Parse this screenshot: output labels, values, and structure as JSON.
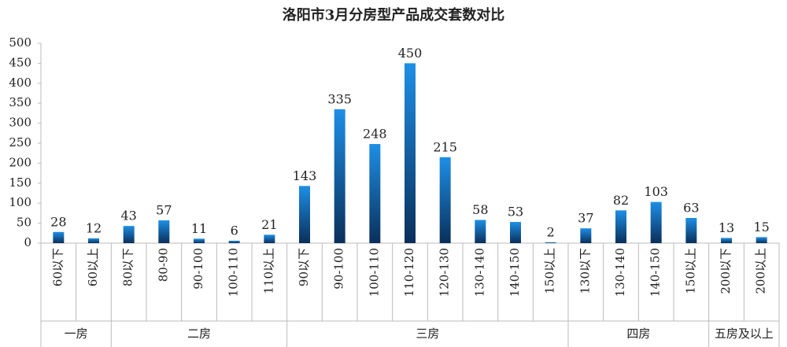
{
  "chart_data": {
    "type": "bar",
    "title": "洛阳市3月分房型产品成交套数对比",
    "color": "#1e8fe6",
    "ylim": [
      0,
      500
    ],
    "yticks": [
      0,
      50,
      100,
      150,
      200,
      250,
      300,
      350,
      400,
      450,
      500
    ],
    "groups": [
      {
        "name": "一房",
        "categories": [
          "60以下",
          "60以上"
        ],
        "values": [
          28,
          12
        ]
      },
      {
        "name": "二房",
        "categories": [
          "80以下",
          "80-90",
          "90-100",
          "100-110",
          "110以上"
        ],
        "values": [
          43,
          57,
          11,
          6,
          21
        ]
      },
      {
        "name": "三房",
        "categories": [
          "90以下",
          "90-100",
          "100-110",
          "110-120",
          "120-130",
          "130-140",
          "140-150",
          "150以上"
        ],
        "values": [
          143,
          335,
          248,
          450,
          215,
          58,
          53,
          2
        ]
      },
      {
        "name": "四房",
        "categories": [
          "130以下",
          "130-140",
          "140-150",
          "150以上"
        ],
        "values": [
          37,
          82,
          103,
          63
        ]
      },
      {
        "name": "五房及以上",
        "categories": [
          "200以下",
          "200以上"
        ],
        "values": [
          13,
          15
        ]
      }
    ]
  }
}
